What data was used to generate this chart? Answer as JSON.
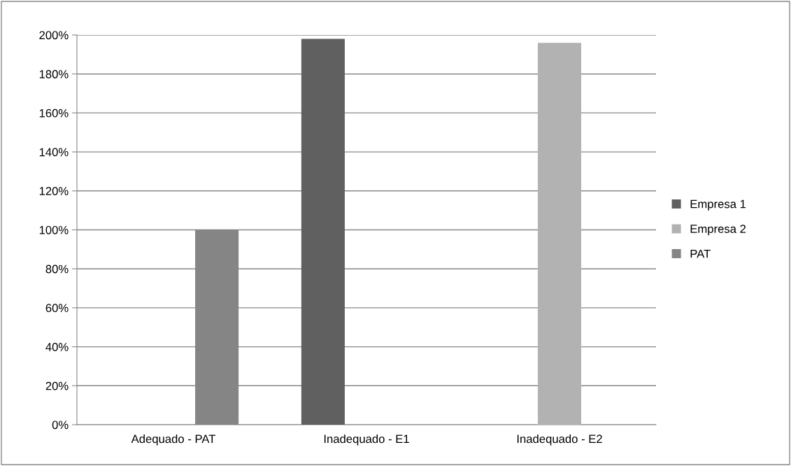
{
  "chart_data": {
    "type": "bar",
    "categories": [
      "Adequado - PAT",
      "Inadequado - E1",
      "Inadequado - E2"
    ],
    "series": [
      {
        "name": "Empresa 1",
        "color": "#606060",
        "values": [
          null,
          198,
          null
        ]
      },
      {
        "name": "Empresa 2",
        "color": "#b2b2b2",
        "values": [
          null,
          null,
          196
        ]
      },
      {
        "name": "PAT",
        "color": "#858585",
        "values": [
          100,
          null,
          null
        ]
      }
    ],
    "ylim": [
      0,
      200
    ],
    "yticks": [
      {
        "value": 0,
        "label": "0%"
      },
      {
        "value": 20,
        "label": "20%"
      },
      {
        "value": 40,
        "label": "40%"
      },
      {
        "value": 60,
        "label": "60%"
      },
      {
        "value": 80,
        "label": "80%"
      },
      {
        "value": 100,
        "label": "100%"
      },
      {
        "value": 120,
        "label": "120%"
      },
      {
        "value": 140,
        "label": "140%"
      },
      {
        "value": 160,
        "label": "160%"
      },
      {
        "value": 180,
        "label": "180%"
      },
      {
        "value": 200,
        "label": "200%"
      }
    ],
    "grid": "y",
    "legend": "right"
  }
}
